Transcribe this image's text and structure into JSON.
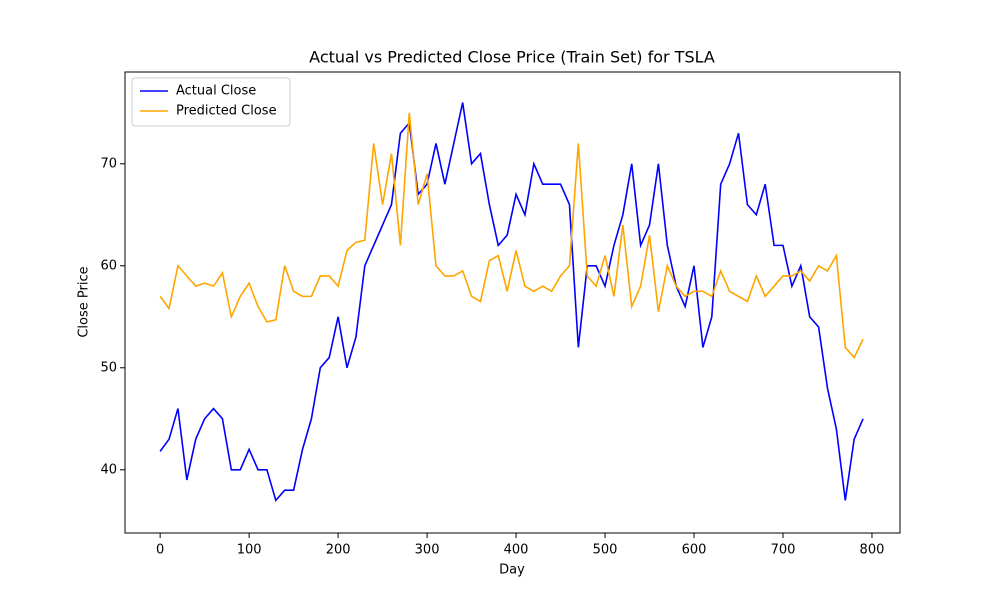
{
  "chart_data": {
    "type": "line",
    "title": "Actual vs Predicted Close Price (Train Set) for TSLA",
    "x_label": "Day",
    "y_label": "Close Price",
    "x": [
      0,
      10,
      20,
      30,
      40,
      50,
      60,
      70,
      80,
      90,
      100,
      110,
      120,
      130,
      140,
      150,
      160,
      170,
      180,
      190,
      200,
      210,
      220,
      230,
      240,
      250,
      260,
      270,
      280,
      290,
      300,
      310,
      320,
      330,
      340,
      350,
      360,
      370,
      380,
      390,
      400,
      410,
      420,
      430,
      440,
      450,
      460,
      470,
      480,
      490,
      500,
      510,
      520,
      530,
      540,
      550,
      560,
      570,
      580,
      590,
      600,
      610,
      620,
      630,
      640,
      650,
      660,
      670,
      680,
      690,
      700,
      710,
      720,
      730,
      740,
      750,
      760,
      770,
      780,
      790
    ],
    "series": [
      {
        "name": "Actual Close",
        "color": "#0000ff",
        "values": [
          41.8,
          43,
          46,
          39,
          43,
          45,
          46,
          45,
          40,
          40,
          42,
          40,
          40,
          37,
          38,
          38,
          42,
          45,
          50,
          51,
          55,
          50,
          53,
          60,
          62,
          64,
          66,
          73,
          74,
          67,
          68,
          72,
          68,
          72,
          76,
          70,
          71,
          66,
          62,
          63,
          67,
          65,
          70,
          68,
          68,
          68,
          66,
          52,
          60,
          60,
          58,
          62,
          65,
          70,
          62,
          64,
          70,
          62,
          58,
          56,
          60,
          52,
          55,
          68,
          70,
          73,
          66,
          65,
          68,
          62,
          62,
          58,
          60,
          55,
          54,
          48,
          44,
          37,
          43,
          45
        ]
      },
      {
        "name": "Predicted Close",
        "color": "#ffa500",
        "values": [
          57,
          55.8,
          60,
          59,
          58,
          58.3,
          58,
          59.3,
          55,
          57,
          58.3,
          56,
          54.5,
          54.7,
          60,
          57.5,
          57,
          57,
          59,
          59,
          58,
          61.5,
          62.3,
          62.5,
          72,
          66,
          71,
          62,
          75,
          66,
          69,
          60,
          59,
          59,
          59.5,
          57,
          56.5,
          60.5,
          61,
          57.5,
          61.5,
          58,
          57.5,
          58,
          57.5,
          59,
          60,
          72,
          59,
          58,
          61,
          57,
          64,
          56,
          58,
          63,
          55.5,
          60,
          58,
          57,
          57.5,
          57.5,
          57,
          59.5,
          57.5,
          57,
          56.5,
          59,
          57,
          58,
          59,
          59,
          59.5,
          58.5,
          60,
          59.5,
          61,
          52,
          51,
          52.8
        ]
      }
    ],
    "xlim": [
      -39.5,
      831.5
    ],
    "ylim": [
      33.8,
      79.0
    ],
    "xticks": [
      0,
      100,
      200,
      300,
      400,
      500,
      600,
      700,
      800
    ],
    "yticks": [
      40,
      50,
      60,
      70
    ],
    "legend": "upper left"
  }
}
